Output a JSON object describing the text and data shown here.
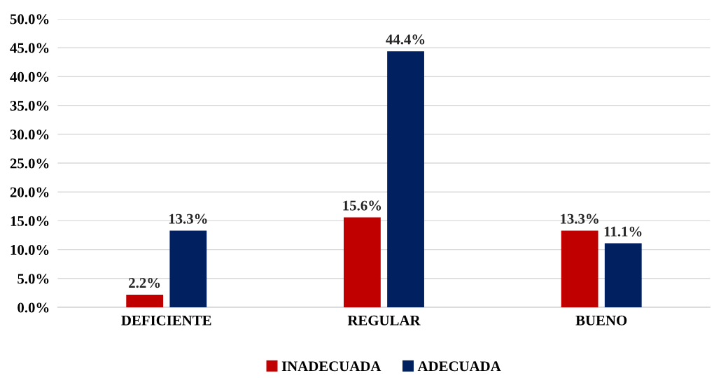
{
  "chart_data": {
    "type": "bar",
    "categories": [
      "DEFICIENTE",
      "REGULAR",
      "BUENO"
    ],
    "series": [
      {
        "name": "INADECUADA",
        "color": "#c00000",
        "values": [
          2.2,
          15.6,
          13.3
        ],
        "value_labels": [
          "2.2%",
          "15.6%",
          "13.3%"
        ]
      },
      {
        "name": "ADECUADA",
        "color": "#002060",
        "values": [
          13.3,
          44.4,
          11.1
        ],
        "value_labels": [
          "13.3%",
          "44.4%",
          "11.1%"
        ]
      }
    ],
    "ylim": [
      0,
      50
    ],
    "yticks": [
      {
        "value": 0,
        "label": "0.0%"
      },
      {
        "value": 5,
        "label": "5.0%"
      },
      {
        "value": 10,
        "label": "10.0%"
      },
      {
        "value": 15,
        "label": "15.0%"
      },
      {
        "value": 20,
        "label": "20.0%"
      },
      {
        "value": 25,
        "label": "25.0%"
      },
      {
        "value": 30,
        "label": "30.0%"
      },
      {
        "value": 35,
        "label": "35.0%"
      },
      {
        "value": 40,
        "label": "40.0%"
      },
      {
        "value": 45,
        "label": "45.0%"
      },
      {
        "value": 50,
        "label": "50.0%"
      }
    ],
    "grid": "y",
    "legend": "bottom"
  }
}
